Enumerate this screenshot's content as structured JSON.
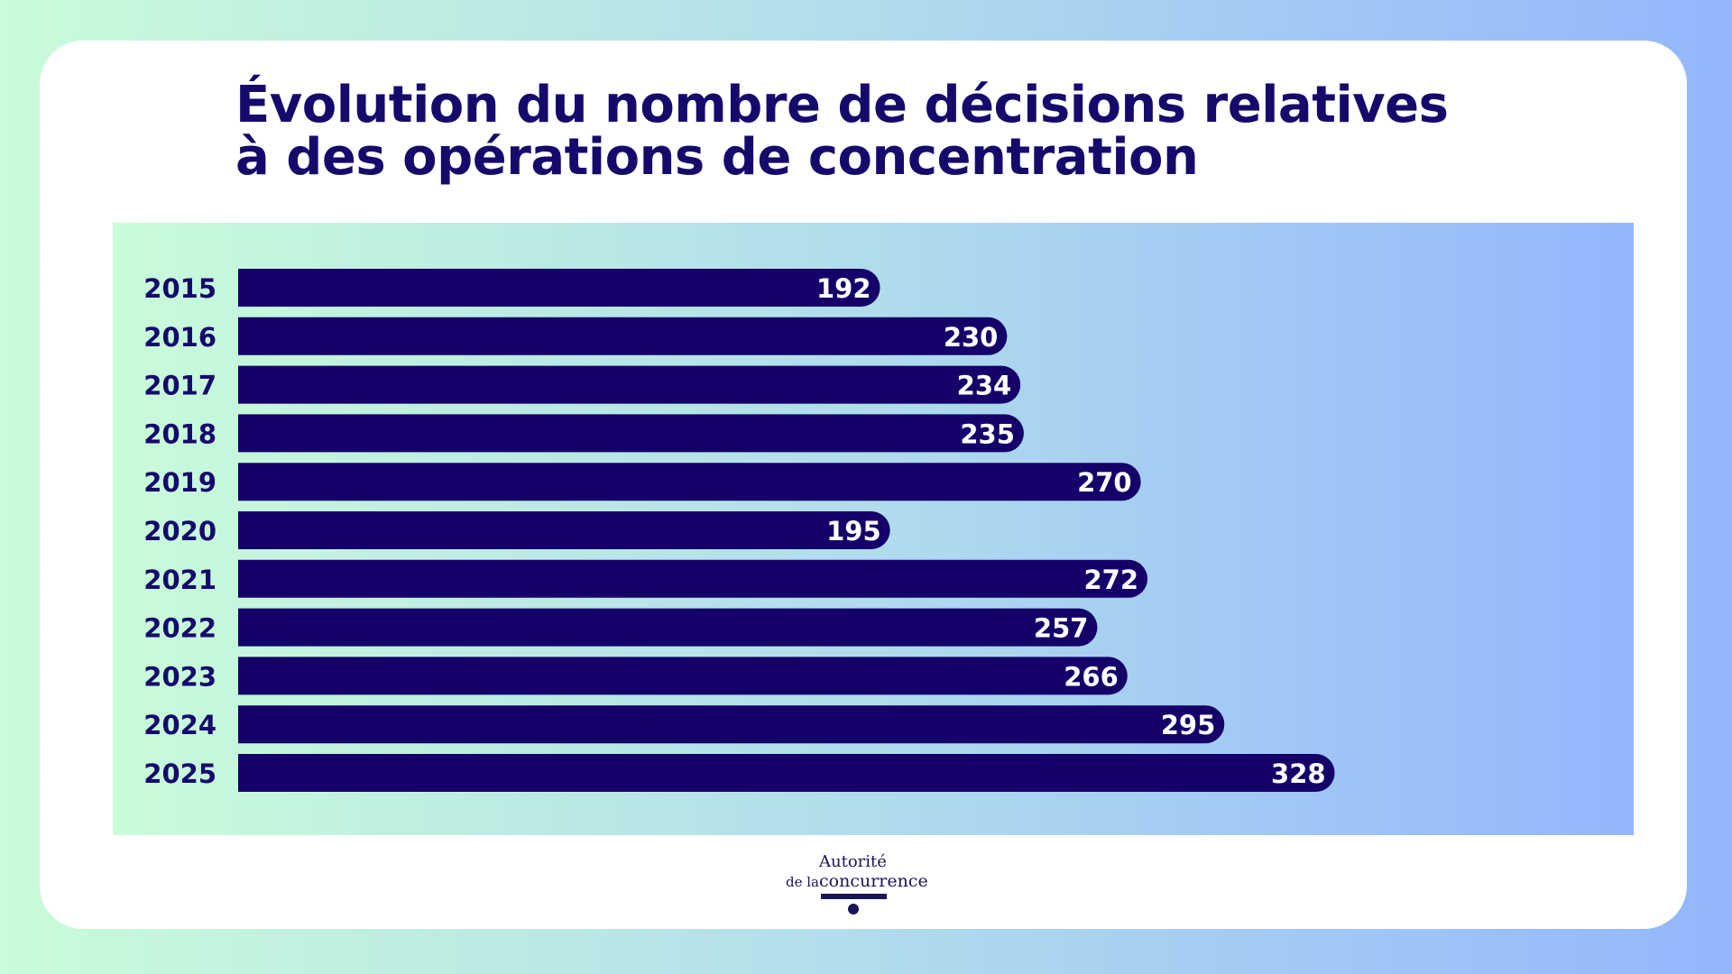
{
  "chart_data": {
    "type": "bar",
    "orientation": "horizontal",
    "title": "Évolution du nombre de décisions relatives à des opérations de concentration",
    "title_lines": [
      "Évolution du nombre de décisions relatives",
      "à des opérations de concentration"
    ],
    "categories": [
      "2015",
      "2016",
      "2017",
      "2018",
      "2019",
      "2020",
      "2021",
      "2022",
      "2023",
      "2024",
      "2025"
    ],
    "values": [
      192,
      230,
      234,
      235,
      270,
      195,
      272,
      257,
      266,
      295,
      328
    ],
    "xlabel": "",
    "ylabel": "",
    "xlim": [
      0,
      370
    ],
    "grid": false,
    "data_labels": true,
    "colors": {
      "bar": "#140068",
      "label": "#150a6b",
      "value_text": "#ffffff"
    }
  },
  "logo": {
    "line1": "Autorité",
    "line2a": "de la",
    "line2b": "concurrence"
  }
}
